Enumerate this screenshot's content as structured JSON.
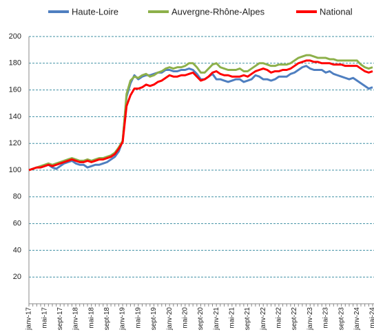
{
  "chart_data": {
    "type": "line",
    "categories": [
      "janv-17",
      null,
      null,
      null,
      "mai-17",
      null,
      null,
      null,
      "sept-17",
      null,
      null,
      null,
      "janv-18",
      null,
      null,
      null,
      "mai-18",
      null,
      null,
      null,
      "sept-18",
      null,
      null,
      null,
      "janv-19",
      null,
      null,
      null,
      "mai-19",
      null,
      null,
      null,
      "sept-19",
      null,
      null,
      null,
      "janv-20",
      null,
      null,
      null,
      "mai-20",
      null,
      null,
      null,
      "sept-20",
      null,
      null,
      null,
      "janv-21",
      null,
      null,
      null,
      "mai-21",
      null,
      null,
      null,
      "sept-21",
      null,
      null,
      null,
      "janv-22",
      null,
      null,
      null,
      "mai-22",
      null,
      null,
      null,
      "sept-22",
      null,
      null,
      null,
      "janv-23",
      null,
      null,
      null,
      "mai-23",
      null,
      null,
      null,
      "sept-23",
      null,
      null,
      null,
      "janv-24",
      null,
      null,
      null,
      "mai-24"
    ],
    "series": [
      {
        "name": "Haute-Loire",
        "color": "#4f7fc0",
        "values": [
          100,
          101,
          102,
          102,
          103,
          104,
          102,
          101,
          103,
          105,
          106,
          107,
          105,
          104,
          104,
          102,
          103,
          104,
          104,
          105,
          106,
          108,
          110,
          114,
          122,
          155,
          165,
          171,
          168,
          170,
          171,
          171,
          172,
          173,
          173,
          175,
          175,
          174,
          174,
          175,
          175,
          176,
          175,
          172,
          168,
          168,
          170,
          172,
          168,
          168,
          167,
          166,
          167,
          168,
          168,
          166,
          167,
          168,
          171,
          170,
          168,
          168,
          167,
          168,
          170,
          170,
          170,
          172,
          173,
          175,
          177,
          178,
          176,
          175,
          175,
          175,
          173,
          174,
          172,
          171,
          170,
          169,
          168,
          169,
          167,
          165,
          163,
          161,
          162
        ]
      },
      {
        "name": "Auvergne-Rhône-Alpes",
        "color": "#8db04a",
        "values": [
          100,
          101,
          102,
          103,
          104,
          105,
          104,
          105,
          106,
          107,
          108,
          109,
          108,
          107,
          107,
          108,
          107,
          108,
          109,
          109,
          110,
          111,
          113,
          117,
          122,
          157,
          167,
          170,
          169,
          171,
          172,
          170,
          171,
          173,
          174,
          176,
          177,
          176,
          177,
          177,
          178,
          180,
          180,
          177,
          173,
          173,
          176,
          179,
          180,
          177,
          176,
          175,
          175,
          175,
          176,
          174,
          174,
          176,
          178,
          180,
          180,
          179,
          178,
          178,
          179,
          179,
          179,
          180,
          182,
          184,
          185,
          186,
          186,
          185,
          184,
          184,
          184,
          183,
          183,
          182,
          182,
          182,
          182,
          182,
          182,
          179,
          177,
          176,
          177
        ]
      },
      {
        "name": "National",
        "color": "#ff0000",
        "values": [
          100,
          101,
          102,
          102,
          103,
          104,
          103,
          104,
          105,
          106,
          107,
          108,
          107,
          106,
          106,
          107,
          106,
          107,
          108,
          108,
          109,
          110,
          112,
          116,
          121,
          148,
          156,
          161,
          161,
          162,
          164,
          163,
          164,
          166,
          167,
          169,
          171,
          170,
          170,
          171,
          171,
          172,
          173,
          170,
          167,
          168,
          170,
          173,
          174,
          172,
          171,
          171,
          170,
          170,
          170,
          171,
          170,
          172,
          174,
          175,
          176,
          175,
          173,
          174,
          174,
          175,
          175,
          176,
          178,
          180,
          181,
          182,
          182,
          181,
          181,
          180,
          180,
          180,
          179,
          179,
          179,
          178,
          178,
          178,
          178,
          176,
          174,
          173,
          174
        ]
      }
    ],
    "ylim": [
      0,
      200
    ],
    "yticks": [
      20,
      40,
      60,
      80,
      100,
      120,
      140,
      160,
      180,
      200
    ],
    "grid": true
  }
}
